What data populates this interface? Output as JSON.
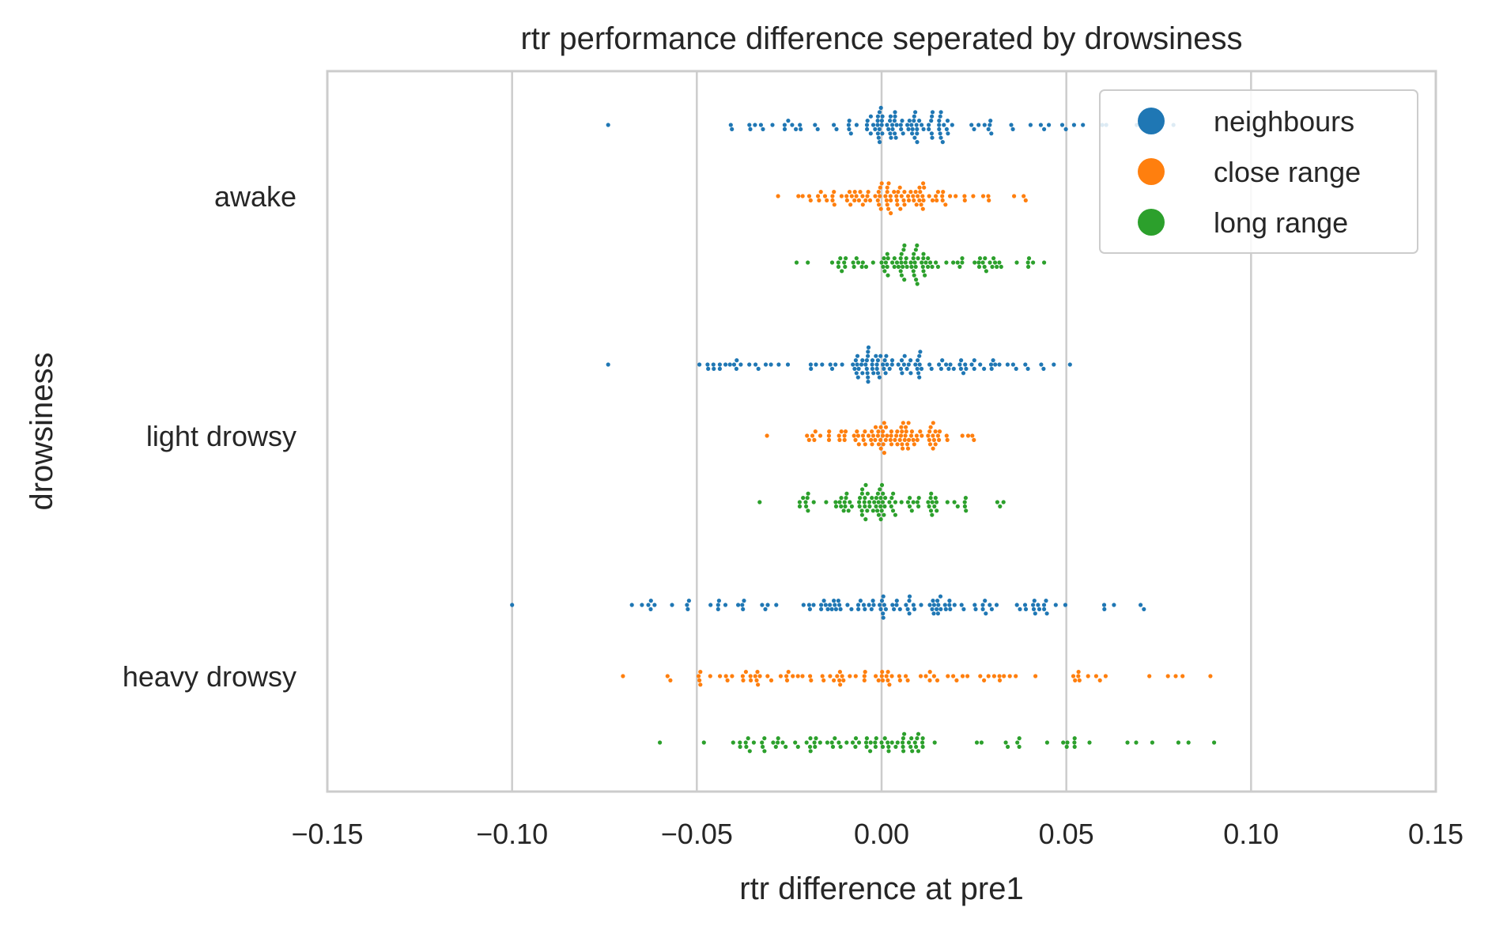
{
  "chart_data": {
    "type": "scatter",
    "subtype": "swarm",
    "title": "rtr performance difference seperated by drowsiness",
    "xlabel": "rtr difference at pre1",
    "ylabel": "drowsiness",
    "xlim": [
      -0.15,
      0.15
    ],
    "x_ticks": [
      -0.15,
      -0.1,
      -0.05,
      0.0,
      0.05,
      0.1,
      0.15
    ],
    "x_tick_labels": [
      "−0.15",
      "−0.10",
      "−0.05",
      "0.00",
      "0.05",
      "0.10",
      "0.15"
    ],
    "categories": [
      "awake",
      "light drowsy",
      "heavy drowsy"
    ],
    "grid": "vertical",
    "legend_position": "top-right",
    "series": [
      {
        "name": "neighbours",
        "color": "#1f77b4",
        "values_by_category": {
          "awake": {
            "min": -0.074,
            "q1": -0.004,
            "median": 0.004,
            "q3": 0.018,
            "max": 0.079
          },
          "light drowsy": {
            "min": -0.074,
            "q1": -0.007,
            "median": 0.0,
            "q3": 0.011,
            "max": 0.051
          },
          "heavy drowsy": {
            "min": -0.1,
            "q1": -0.022,
            "median": 0.0,
            "q3": 0.018,
            "max": 0.071
          }
        }
      },
      {
        "name": "close range",
        "color": "#ff7f0e",
        "values_by_category": {
          "awake": {
            "min": -0.028,
            "q1": -0.002,
            "median": 0.004,
            "q3": 0.012,
            "max": 0.039
          },
          "light drowsy": {
            "min": -0.031,
            "q1": -0.004,
            "median": 0.002,
            "q3": 0.01,
            "max": 0.025
          },
          "heavy drowsy": {
            "min": -0.07,
            "q1": -0.02,
            "median": 0.0,
            "q3": 0.02,
            "max": 0.089
          }
        }
      },
      {
        "name": "long range",
        "color": "#2ca02c",
        "values_by_category": {
          "awake": {
            "min": -0.023,
            "q1": 0.0,
            "median": 0.006,
            "q3": 0.014,
            "max": 0.044
          },
          "light drowsy": {
            "min": -0.033,
            "q1": -0.006,
            "median": 0.0,
            "q3": 0.008,
            "max": 0.033
          },
          "heavy drowsy": {
            "min": -0.06,
            "q1": -0.02,
            "median": -0.002,
            "q3": 0.012,
            "max": 0.09
          }
        }
      }
    ]
  }
}
